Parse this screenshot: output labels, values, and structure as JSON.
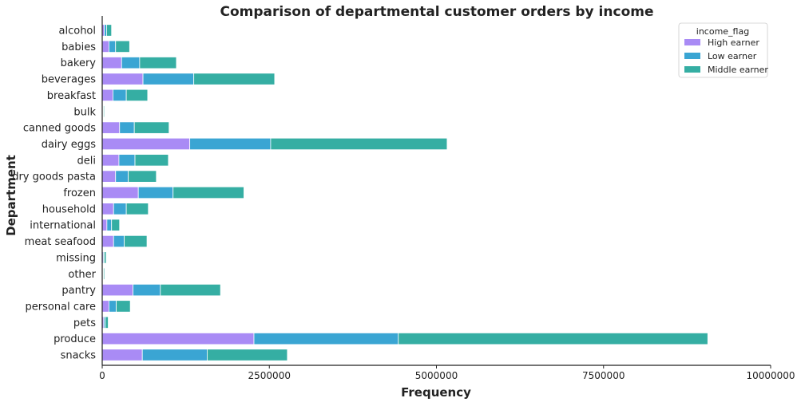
{
  "chart_data": {
    "type": "bar",
    "orientation": "horizontal",
    "stacked": true,
    "title": "Comparison of departmental customer orders by income",
    "xlabel": "Frequency",
    "ylabel": "Department",
    "xlim": [
      0,
      10000000
    ],
    "xticks": [
      0,
      2500000,
      5000000,
      7500000,
      10000000
    ],
    "xtick_labels": [
      "0",
      "2500000",
      "5000000",
      "7500000",
      "10000000"
    ],
    "grid": false,
    "legend": {
      "title": "income_flag",
      "placement": "top-right"
    },
    "categories": [
      "alcohol",
      "babies",
      "bakery",
      "beverages",
      "breakfast",
      "bulk",
      "canned goods",
      "dairy eggs",
      "deli",
      "dry goods pasta",
      "frozen",
      "household",
      "international",
      "meat seafood",
      "missing",
      "other",
      "pantry",
      "personal care",
      "pets",
      "produce",
      "snacks"
    ],
    "series": [
      {
        "name": "High earner",
        "color": "#a98bf5",
        "values": [
          30000,
          100000,
          290000,
          610000,
          160000,
          9000,
          260000,
          1310000,
          250000,
          200000,
          540000,
          170000,
          70000,
          170000,
          16000,
          9000,
          460000,
          100000,
          23000,
          2270000,
          600000
        ]
      },
      {
        "name": "Low earner",
        "color": "#3aa5d3",
        "values": [
          35000,
          100000,
          270000,
          760000,
          200000,
          9000,
          220000,
          1210000,
          240000,
          190000,
          520000,
          190000,
          70000,
          160000,
          13000,
          9000,
          410000,
          110000,
          22000,
          2160000,
          970000
        ]
      },
      {
        "name": "Middle earner",
        "color": "#35aea3",
        "values": [
          75000,
          210000,
          550000,
          1210000,
          320000,
          14000,
          520000,
          2640000,
          500000,
          420000,
          1060000,
          330000,
          120000,
          340000,
          30000,
          16000,
          900000,
          210000,
          45000,
          4630000,
          1200000
        ]
      }
    ]
  }
}
